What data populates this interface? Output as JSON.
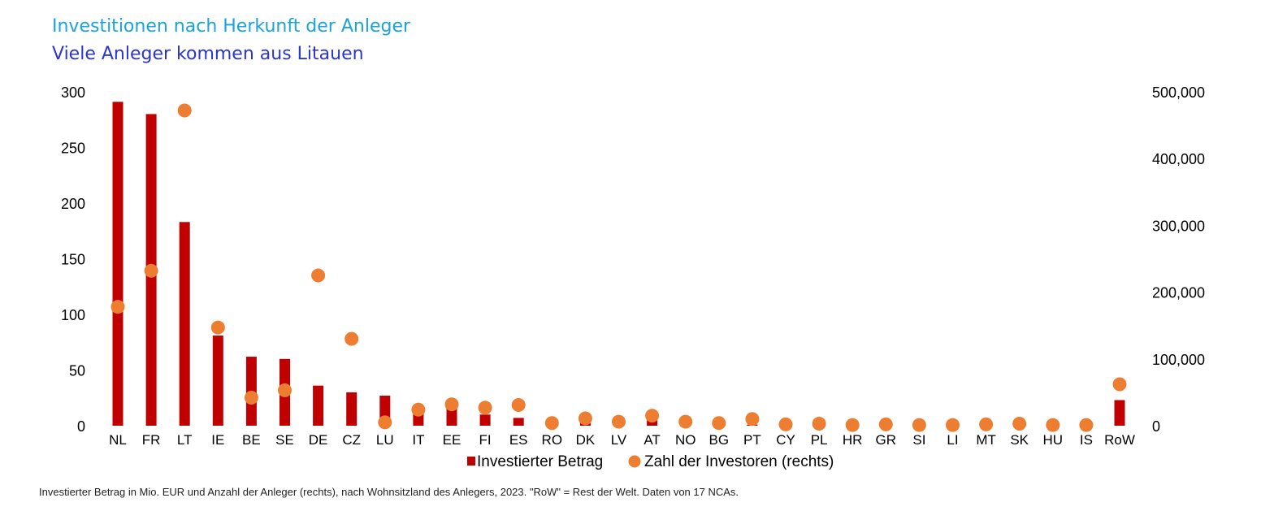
{
  "colors": {
    "bar": "#c00000",
    "dot": "#ed7d31",
    "title": "#1aa3dc",
    "subtitle": "#2b34d4"
  },
  "chart_data": {
    "type": "bar",
    "title": "Investitionen nach Herkunft der Anleger",
    "subtitle": "Viele Anleger kommen aus Litauen",
    "footnote": "Investierter Betrag in Mio. EUR und Anzahl der Anleger (rechts), nach Wohnsitzland des Anlegers, 2023. \"RoW\" = Rest der Welt. Daten von 17 NCAs.",
    "categories": [
      "NL",
      "FR",
      "LT",
      "IE",
      "BE",
      "SE",
      "DE",
      "CZ",
      "LU",
      "IT",
      "EE",
      "FI",
      "ES",
      "RO",
      "DK",
      "LV",
      "AT",
      "NO",
      "BG",
      "PT",
      "CY",
      "PL",
      "HR",
      "GR",
      "SI",
      "LI",
      "MT",
      "SK",
      "HU",
      "IS",
      "RoW"
    ],
    "y_left": {
      "ylim": [
        0,
        300
      ],
      "ticks": [
        "0",
        "50",
        "100",
        "150",
        "200",
        "250",
        "300"
      ],
      "tick_values": [
        0,
        50,
        100,
        150,
        200,
        250,
        300
      ]
    },
    "y_right": {
      "ylim": [
        0,
        500000
      ],
      "ticks": [
        "0",
        "100,000",
        "200,000",
        "300,000",
        "400,000",
        "500,000"
      ],
      "tick_values": [
        0,
        100000,
        200000,
        300000,
        400000,
        500000
      ]
    },
    "legend_position": "bottom",
    "grid": false,
    "series": [
      {
        "name": "Investierter Betrag",
        "type": "bar",
        "axis": "left",
        "values": [
          291,
          280,
          183,
          81,
          62,
          60,
          36,
          30,
          27,
          13,
          19,
          10,
          7,
          5,
          8,
          3,
          7,
          2,
          1,
          1,
          0.5,
          1,
          0.5,
          1,
          0.5,
          0.2,
          0.5,
          0.5,
          0.3,
          0.2,
          23
        ]
      },
      {
        "name": "Zahl der Investoren (rechts)",
        "type": "scatter",
        "axis": "right",
        "values": [
          178000,
          232000,
          472000,
          147000,
          42000,
          53000,
          225000,
          130000,
          5000,
          24000,
          32000,
          27000,
          31000,
          4000,
          11000,
          6000,
          15000,
          6000,
          4000,
          10000,
          2000,
          3000,
          1000,
          2000,
          1000,
          1000,
          2000,
          3000,
          1000,
          1000,
          62000
        ]
      }
    ]
  }
}
